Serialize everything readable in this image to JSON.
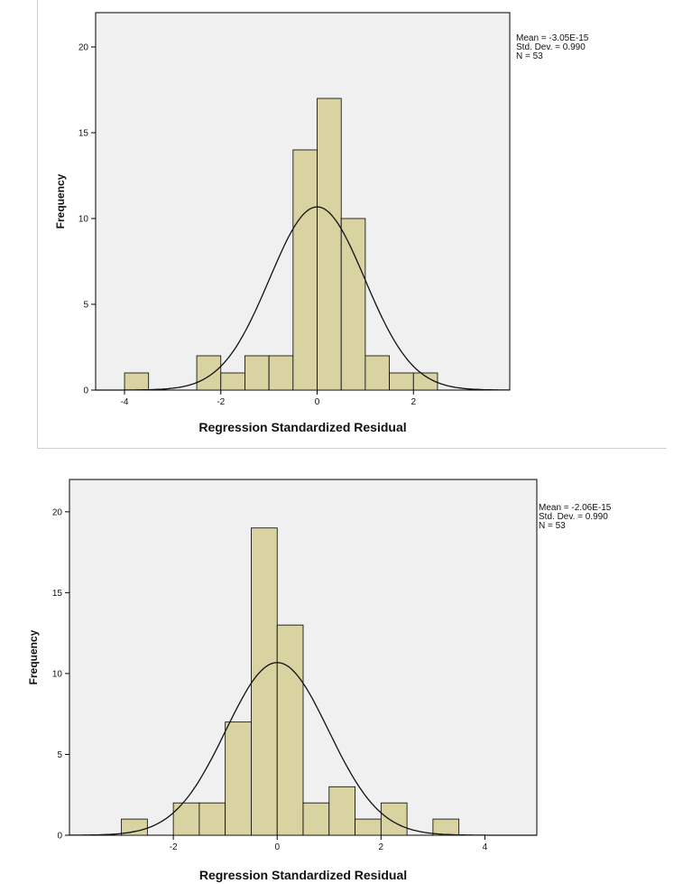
{
  "chart_data": [
    {
      "type": "bar",
      "subtype": "histogram",
      "xlabel": "Regression Standardized Residual",
      "ylabel": "Frequency",
      "xlim": [
        -4.6,
        4.0
      ],
      "ylim": [
        0,
        22
      ],
      "x_ticks": [
        -4,
        -2,
        0,
        2
      ],
      "y_ticks": [
        0,
        5,
        10,
        15,
        20
      ],
      "bins": [
        {
          "from": -4.0,
          "to": -3.5,
          "count": 1
        },
        {
          "from": -2.5,
          "to": -2.0,
          "count": 2
        },
        {
          "from": -2.0,
          "to": -1.5,
          "count": 1
        },
        {
          "from": -1.5,
          "to": -1.0,
          "count": 2
        },
        {
          "from": -1.0,
          "to": -0.5,
          "count": 2
        },
        {
          "from": -0.5,
          "to": 0.0,
          "count": 14
        },
        {
          "from": 0.0,
          "to": 0.5,
          "count": 17
        },
        {
          "from": 0.5,
          "to": 1.0,
          "count": 10
        },
        {
          "from": 1.0,
          "to": 1.5,
          "count": 2
        },
        {
          "from": 1.5,
          "to": 2.0,
          "count": 1
        },
        {
          "from": 2.0,
          "to": 2.5,
          "count": 1
        }
      ],
      "normal_curve": {
        "mean": 0,
        "sd": 0.99,
        "n": 53,
        "bin_width": 0.5
      },
      "stats": [
        "Mean = -3.05E-15",
        "Std. Dev. = 0.990",
        "N = 53"
      ],
      "grid": false,
      "bar_color": "#d8d3a1",
      "plot_background": "#f0f0f0"
    },
    {
      "type": "bar",
      "subtype": "histogram",
      "xlabel": "Regression Standardized Residual",
      "ylabel": "Frequency",
      "xlim": [
        -4.0,
        5.0
      ],
      "ylim": [
        0,
        22
      ],
      "x_ticks": [
        -2,
        0,
        2,
        4
      ],
      "y_ticks": [
        0,
        5,
        10,
        15,
        20
      ],
      "bins": [
        {
          "from": -3.0,
          "to": -2.5,
          "count": 1
        },
        {
          "from": -2.0,
          "to": -1.5,
          "count": 2
        },
        {
          "from": -1.5,
          "to": -1.0,
          "count": 2
        },
        {
          "from": -1.0,
          "to": -0.5,
          "count": 7
        },
        {
          "from": -0.5,
          "to": 0.0,
          "count": 19
        },
        {
          "from": 0.0,
          "to": 0.5,
          "count": 13
        },
        {
          "from": 0.5,
          "to": 1.0,
          "count": 2
        },
        {
          "from": 1.0,
          "to": 1.5,
          "count": 3
        },
        {
          "from": 1.5,
          "to": 2.0,
          "count": 1
        },
        {
          "from": 2.0,
          "to": 2.5,
          "count": 2
        },
        {
          "from": 3.0,
          "to": 3.5,
          "count": 1
        }
      ],
      "normal_curve": {
        "mean": 0,
        "sd": 0.99,
        "n": 53,
        "bin_width": 0.5
      },
      "stats": [
        "Mean = -2.06E-15",
        "Std. Dev. = 0.990",
        "N = 53"
      ],
      "grid": false,
      "bar_color": "#d8d3a1",
      "plot_background": "#f0f0f0"
    }
  ]
}
